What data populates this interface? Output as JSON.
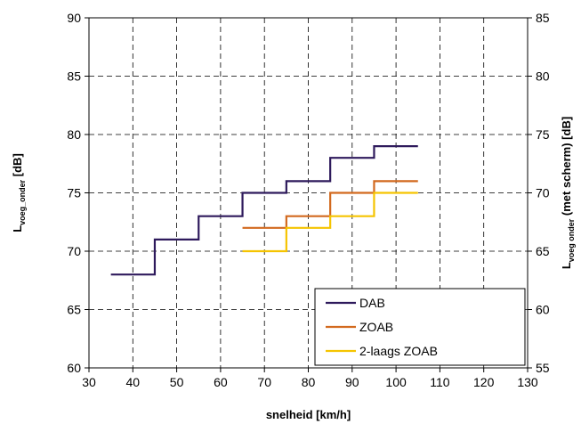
{
  "chart_data": {
    "type": "line",
    "step": true,
    "xlabel": "snelheid [km/h]",
    "ylabel_main": "L",
    "ylabel_sub": "voeg_onder",
    "ylabel_tail": " [dB]",
    "y2label_main": "L",
    "y2label_sub": "voeg onder",
    "y2label_tail": " (met scherm) [dB]",
    "xlim": [
      30,
      130
    ],
    "ylim": [
      60,
      90
    ],
    "y2lim": [
      55,
      85
    ],
    "xticks": [
      30,
      40,
      50,
      60,
      70,
      80,
      90,
      100,
      110,
      120,
      130
    ],
    "yticks": [
      60,
      65,
      70,
      75,
      80,
      85,
      90
    ],
    "y2ticks": [
      55,
      60,
      65,
      70,
      75,
      80,
      85
    ],
    "grid": true,
    "legend_position": "bottom-right",
    "series": [
      {
        "name": "DAB",
        "color": "#2e1a5c",
        "steps": [
          [
            35,
            45,
            68
          ],
          [
            45,
            55,
            71
          ],
          [
            55,
            65,
            73
          ],
          [
            65,
            75,
            75
          ],
          [
            75,
            85,
            76
          ],
          [
            85,
            95,
            78
          ],
          [
            95,
            105,
            79
          ]
        ]
      },
      {
        "name": "ZOAB",
        "color": "#d2691e",
        "steps": [
          [
            65,
            75,
            72
          ],
          [
            75,
            85,
            73
          ],
          [
            85,
            95,
            75
          ],
          [
            95,
            105,
            76
          ]
        ]
      },
      {
        "name": "2-laags ZOAB",
        "color": "#f5c400",
        "steps": [
          [
            65,
            75,
            70
          ],
          [
            75,
            85,
            72
          ],
          [
            85,
            95,
            73
          ],
          [
            95,
            105,
            75
          ]
        ]
      }
    ]
  }
}
